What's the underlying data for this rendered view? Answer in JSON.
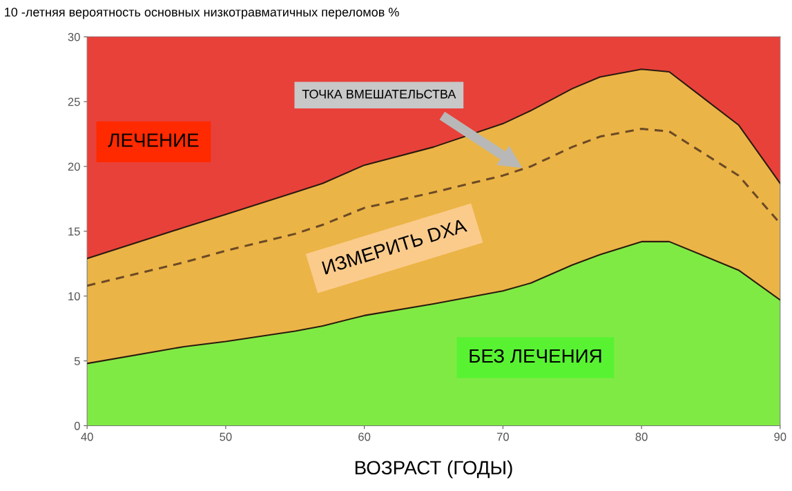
{
  "chart_data": {
    "type": "area",
    "stacked": true,
    "title": "10 -летняя вероятность основных низкотравматичных переломов %",
    "xlabel": "ВОЗРАСТ (ГОДЫ)",
    "x": [
      40,
      47,
      50,
      55,
      57,
      60,
      65,
      70,
      72,
      75,
      77,
      80,
      82,
      87,
      90
    ],
    "series": [
      {
        "color": "#80ea44",
        "values": [
          4.8,
          6.1,
          6.5,
          7.3,
          7.7,
          8.5,
          9.4,
          10.4,
          11.0,
          12.4,
          13.2,
          14.2,
          14.2,
          12.0,
          9.7
        ]
      },
      {
        "color": "#ebb446",
        "values": [
          8.1,
          9.2,
          9.8,
          10.7,
          11.0,
          11.6,
          12.1,
          12.9,
          13.3,
          13.6,
          13.7,
          13.3,
          13.1,
          11.2,
          9.0
        ]
      },
      {
        "color": "#e8413a",
        "values": [
          17.1,
          14.7,
          13.7,
          12.0,
          11.3,
          9.9,
          8.5,
          6.7,
          5.7,
          4.0,
          3.1,
          2.5,
          2.7,
          6.8,
          11.3
        ]
      },
      {
        "type": "line",
        "color": "#6b4a26",
        "line_style": "dashed",
        "values": [
          10.8,
          12.6,
          13.5,
          14.8,
          15.5,
          16.8,
          18.0,
          19.3,
          20.0,
          21.5,
          22.3,
          22.9,
          22.7,
          19.3,
          15.6
        ]
      }
    ],
    "annotations": [
      "ЛЕЧЕНИЕ",
      "ТОЧКА ВМЕШАТЕЛЬСТВА",
      "ИЗМЕРИТЬ DXA",
      "БЕЗ ЛЕЧЕНИЯ"
    ],
    "xlim": [
      40,
      90
    ],
    "xticks": [
      40,
      50,
      60,
      70,
      80,
      90
    ],
    "ylim": [
      0,
      30
    ],
    "yticks": [
      0,
      5,
      10,
      15,
      20,
      25,
      30
    ],
    "grid": false,
    "legend": false
  }
}
